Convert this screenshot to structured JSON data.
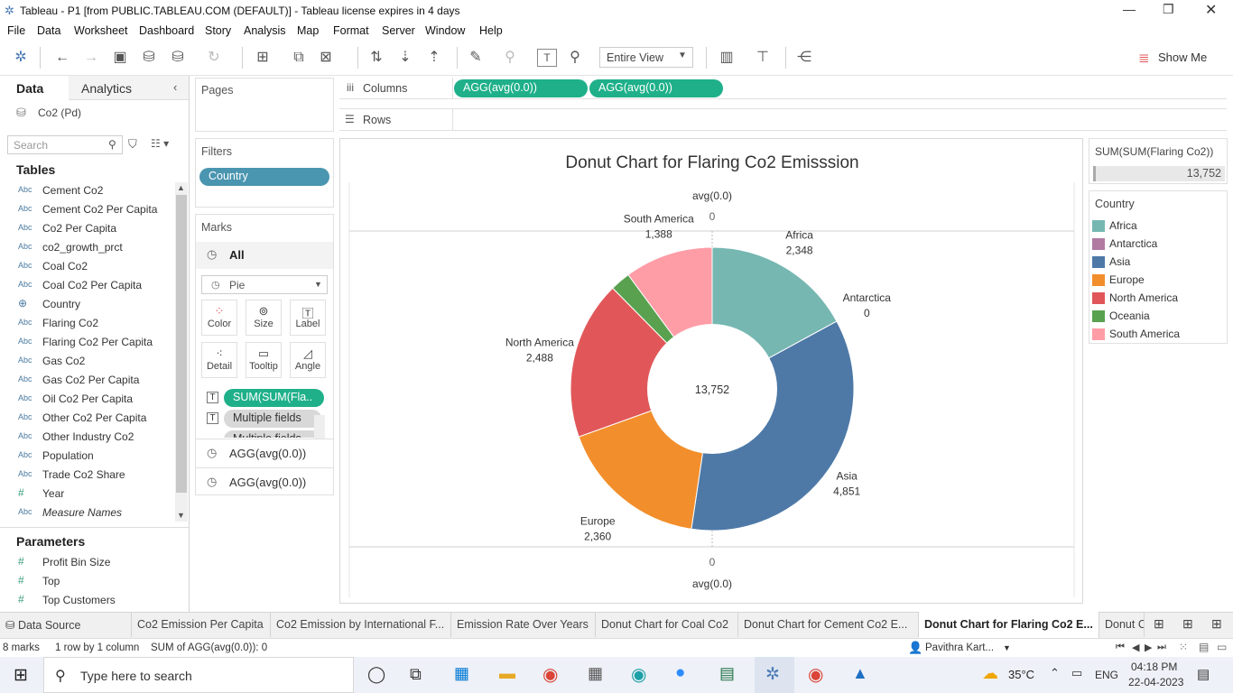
{
  "window": {
    "title": "Tableau - P1 [from PUBLIC.TABLEAU.COM (DEFAULT)] - Tableau license expires in 4 days"
  },
  "menu": [
    "File",
    "Data",
    "Worksheet",
    "Dashboard",
    "Story",
    "Analysis",
    "Map",
    "Format",
    "Server",
    "Window",
    "Help"
  ],
  "toolbar": {
    "fit": "Entire View",
    "show_me": "Show Me"
  },
  "left": {
    "tab_data": "Data",
    "tab_analytics": "Analytics",
    "datasource": "Co2 (Pd)",
    "search_placeholder": "Search",
    "tables_header": "Tables",
    "fields": [
      {
        "type": "Abc",
        "name": "Cement Co2"
      },
      {
        "type": "Abc",
        "name": "Cement Co2 Per Capita"
      },
      {
        "type": "Abc",
        "name": "Co2 Per Capita"
      },
      {
        "type": "Abc",
        "name": "co2_growth_prct"
      },
      {
        "type": "Abc",
        "name": "Coal Co2"
      },
      {
        "type": "Abc",
        "name": "Coal Co2 Per Capita"
      },
      {
        "type": "globe",
        "name": "Country"
      },
      {
        "type": "Abc",
        "name": "Flaring Co2"
      },
      {
        "type": "Abc",
        "name": "Flaring Co2 Per Capita"
      },
      {
        "type": "Abc",
        "name": "Gas Co2"
      },
      {
        "type": "Abc",
        "name": "Gas Co2 Per Capita"
      },
      {
        "type": "Abc",
        "name": "Oil Co2 Per Capita"
      },
      {
        "type": "Abc",
        "name": "Other Co2 Per Capita"
      },
      {
        "type": "Abc",
        "name": "Other Industry Co2"
      },
      {
        "type": "Abc",
        "name": "Population"
      },
      {
        "type": "Abc",
        "name": "Trade Co2 Share"
      },
      {
        "type": "#",
        "name": "Year"
      },
      {
        "type": "Abc",
        "name": "Measure Names"
      }
    ],
    "parameters_header": "Parameters",
    "parameters": [
      {
        "type": "#",
        "name": "Profit Bin Size"
      },
      {
        "type": "#",
        "name": "Top"
      },
      {
        "type": "#",
        "name": "Top Customers"
      }
    ]
  },
  "shelves": {
    "pages": "Pages",
    "filters": "Filters",
    "filter_pill": "Country",
    "marks": "Marks",
    "marks_all": "All",
    "mark_type": "Pie",
    "cards": [
      "Color",
      "Size",
      "Label",
      "Detail",
      "Tooltip",
      "Angle"
    ],
    "mark_pills": [
      "SUM(SUM(Fla..",
      "Multiple fields",
      "Multiple fields"
    ],
    "agg_rows": [
      "AGG(avg(0.0))",
      "AGG(avg(0.0))"
    ],
    "columns_label": "Columns",
    "columns_pills": [
      "AGG(avg(0.0))",
      "AGG(avg(0.0))"
    ],
    "rows_label": "Rows"
  },
  "view": {
    "title": "Donut Chart for Flaring Co2 Emisssion",
    "axis_top_title": "avg(0.0)",
    "axis_top_tick": "0",
    "axis_bottom_tick": "0",
    "axis_bottom_title": "avg(0.0)",
    "center_total": "13,752"
  },
  "chart_data": {
    "type": "pie",
    "title": "Donut Chart for Flaring Co2 Emisssion",
    "categories": [
      "Africa",
      "Antarctica",
      "Asia",
      "Europe",
      "North America",
      "Oceania",
      "South America"
    ],
    "values": [
      2348,
      0,
      4851,
      2360,
      2488,
      317,
      1388
    ],
    "labels": [
      "2,348",
      "0",
      "4,851",
      "2,360",
      "2,488",
      "",
      "1,388"
    ],
    "colors": [
      "#76b7b2",
      "#b07aa1",
      "#4e79a7",
      "#f28e2b",
      "#e15759",
      "#59a14f",
      "#ff9da7"
    ],
    "total": "13,752",
    "legend_placement": "right"
  },
  "legend": {
    "size_title": "SUM(SUM(Flaring Co2))",
    "size_value": "13,752",
    "color_title": "Country"
  },
  "tabs": [
    "Data Source",
    "Co2 Emission Per Capita",
    "Co2 Emission by International F...",
    "Emission Rate Over Years",
    "Donut Chart for Coal Co2",
    "Donut  Chart for Cement Co2 E...",
    "Donut Chart for Flaring Co2 E...",
    "Donut C"
  ],
  "status": {
    "marks": "8 marks",
    "rows": "1 row by 1 column",
    "sum": "SUM of AGG(avg(0.0)): 0",
    "user": "Pavithra  Kart..."
  },
  "taskbar": {
    "search": "Type here to search",
    "weather": "35°C",
    "lang": "ENG",
    "time": "04:18 PM",
    "date": "22-04-2023"
  }
}
